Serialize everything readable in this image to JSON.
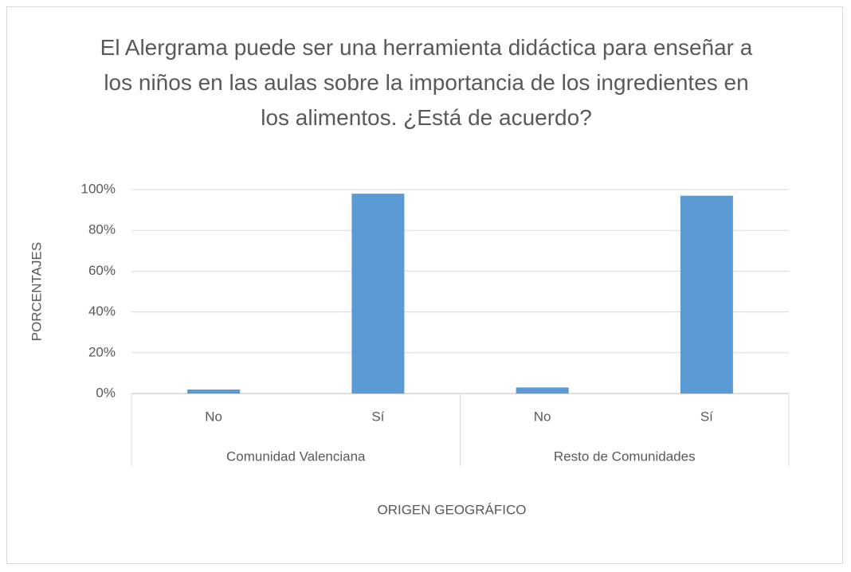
{
  "chart_data": {
    "type": "bar",
    "title": "El Alergrama puede ser una herramienta didáctica para enseñar a los niños en las aulas sobre la importancia de los ingredientes en los alimentos. ¿Está de acuerdo?",
    "categories": [
      "No",
      "Sí",
      "No",
      "Sí"
    ],
    "groups": [
      "Comunidad Valenciana",
      "Resto de Comunidades"
    ],
    "values": [
      2,
      98,
      3,
      97
    ],
    "color": "#5b9bd5",
    "x_label": "ORIGEN GEOGRÁFICO",
    "y_label": "PORCENTAJES",
    "ylim": [
      0,
      100
    ],
    "yticks": [
      {
        "value": 0,
        "label": "0%"
      },
      {
        "value": 20,
        "label": "20%"
      },
      {
        "value": 40,
        "label": "40%"
      },
      {
        "value": 60,
        "label": "60%"
      },
      {
        "value": 80,
        "label": "80%"
      },
      {
        "value": 100,
        "label": "100%"
      }
    ],
    "grid": true
  }
}
